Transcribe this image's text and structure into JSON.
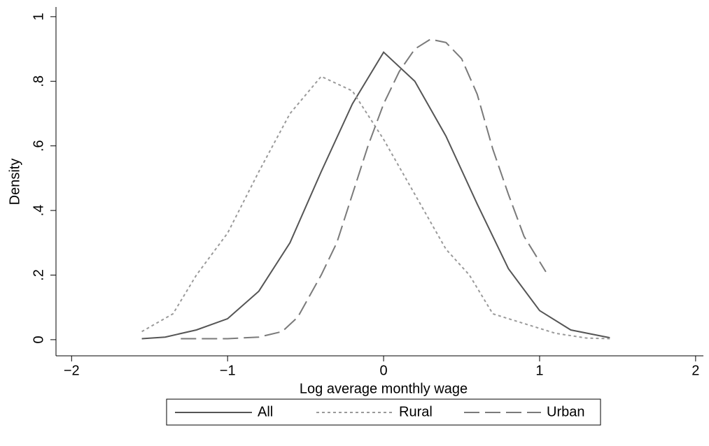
{
  "chart_data": {
    "type": "line",
    "xlabel": "Log average monthly wage",
    "ylabel": "Density",
    "xlim": [
      -2.1,
      2.05
    ],
    "ylim": [
      -0.05,
      1.03
    ],
    "xticks": [
      {
        "value": -2,
        "label": "−2"
      },
      {
        "value": -1,
        "label": "−1"
      },
      0,
      1,
      2
    ],
    "yticks": [
      0,
      {
        "value": 0.2,
        "label": ".2"
      },
      {
        "value": 0.4,
        "label": ".4"
      },
      {
        "value": 0.6,
        "label": ".6"
      },
      {
        "value": 0.8,
        "label": ".8"
      },
      1
    ],
    "legend": "bottom",
    "series": [
      {
        "name": "All",
        "color": "#555555",
        "dash": "solid",
        "x": [
          -1.55,
          -1.4,
          -1.2,
          -1.0,
          -0.8,
          -0.6,
          -0.4,
          -0.2,
          0,
          0.2,
          0.4,
          0.6,
          0.8,
          1.0,
          1.2,
          1.45
        ],
        "values": [
          0.003,
          0.008,
          0.03,
          0.065,
          0.15,
          0.3,
          0.52,
          0.73,
          0.89,
          0.8,
          0.63,
          0.42,
          0.22,
          0.09,
          0.03,
          0.006
        ]
      },
      {
        "name": "Rural",
        "color": "#9a9a9a",
        "dash": "dotted",
        "x": [
          -1.55,
          -1.35,
          -1.2,
          -1.0,
          -0.8,
          -0.6,
          -0.4,
          -0.2,
          0,
          0.2,
          0.4,
          0.55,
          0.7,
          0.9,
          1.1,
          1.3,
          1.45
        ],
        "values": [
          0.025,
          0.08,
          0.2,
          0.33,
          0.52,
          0.7,
          0.815,
          0.77,
          0.62,
          0.45,
          0.28,
          0.2,
          0.08,
          0.05,
          0.02,
          0.005,
          0.003
        ]
      },
      {
        "name": "Urban",
        "color": "#7a7a7a",
        "dash": "dashed",
        "x": [
          -1.3,
          -1.0,
          -0.8,
          -0.65,
          -0.55,
          -0.4,
          -0.3,
          -0.2,
          -0.1,
          0,
          0.1,
          0.2,
          0.3,
          0.4,
          0.5,
          0.6,
          0.7,
          0.8,
          0.9,
          1.04
        ],
        "values": [
          0.003,
          0.003,
          0.008,
          0.025,
          0.07,
          0.2,
          0.3,
          0.45,
          0.6,
          0.73,
          0.83,
          0.9,
          0.93,
          0.92,
          0.87,
          0.76,
          0.59,
          0.45,
          0.32,
          0.21
        ]
      }
    ]
  }
}
